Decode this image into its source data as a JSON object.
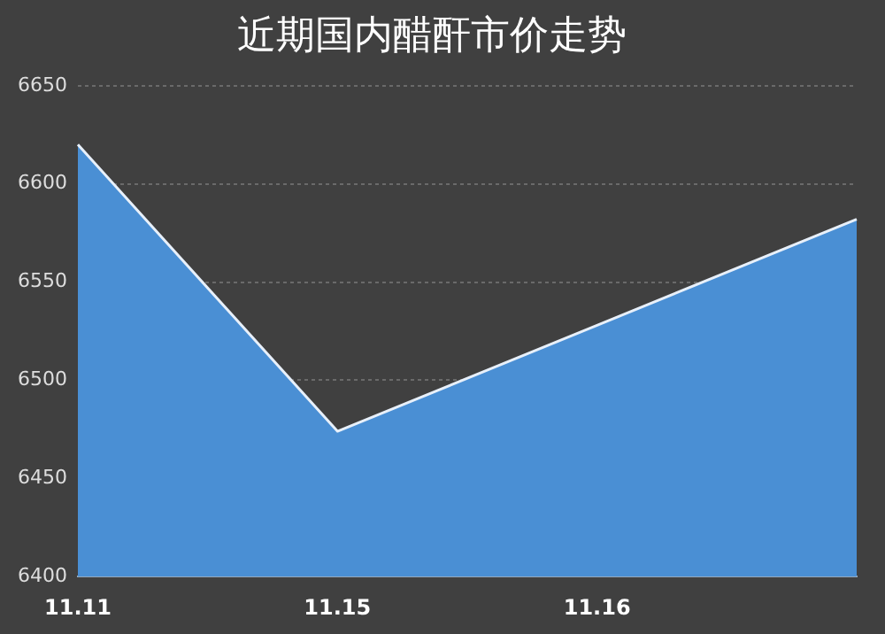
{
  "chart_data": {
    "type": "area",
    "title": "近期国内醋酐市价走势",
    "categories": [
      "11.11",
      "11.15",
      "11.16",
      null
    ],
    "series": [
      {
        "color": "#4a8fd4",
        "values": [
          6620,
          6474,
          6528,
          6582
        ]
      }
    ],
    "ylim": [
      6400,
      6650
    ],
    "yticks": [
      6400,
      6450,
      6500,
      6550,
      6600,
      6650
    ],
    "grid": "y",
    "legend": false,
    "marker": "none"
  }
}
